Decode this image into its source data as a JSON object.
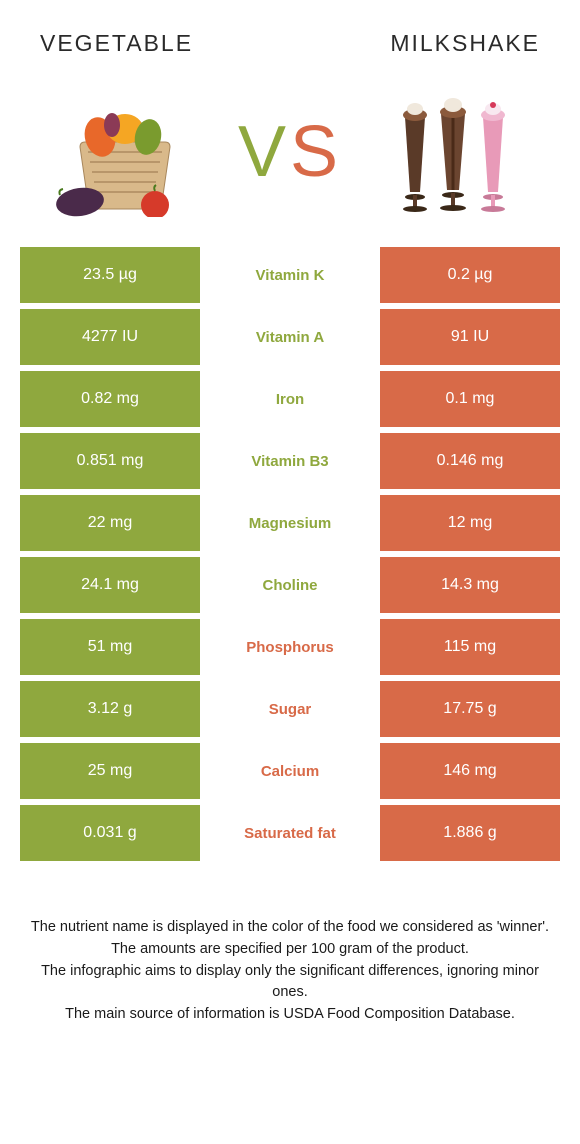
{
  "colors": {
    "left": "#8fa83e",
    "right": "#d86a48",
    "mid_left_text": "#8fa83e",
    "mid_right_text": "#d86a48",
    "header_text": "#2a2a2a"
  },
  "header": {
    "left_title": "Vegetable",
    "right_title": "Milkshake"
  },
  "vs": {
    "v": "V",
    "s": "S"
  },
  "rows": [
    {
      "left": "23.5 µg",
      "mid": "Vitamin K",
      "right": "0.2 µg",
      "winner": "left"
    },
    {
      "left": "4277 IU",
      "mid": "Vitamin A",
      "right": "91 IU",
      "winner": "left"
    },
    {
      "left": "0.82 mg",
      "mid": "Iron",
      "right": "0.1 mg",
      "winner": "left"
    },
    {
      "left": "0.851 mg",
      "mid": "Vitamin B3",
      "right": "0.146 mg",
      "winner": "left"
    },
    {
      "left": "22 mg",
      "mid": "Magnesium",
      "right": "12 mg",
      "winner": "left"
    },
    {
      "left": "24.1 mg",
      "mid": "Choline",
      "right": "14.3 mg",
      "winner": "left"
    },
    {
      "left": "51 mg",
      "mid": "Phosphorus",
      "right": "115 mg",
      "winner": "right"
    },
    {
      "left": "3.12 g",
      "mid": "Sugar",
      "right": "17.75 g",
      "winner": "right"
    },
    {
      "left": "25 mg",
      "mid": "Calcium",
      "right": "146 mg",
      "winner": "right"
    },
    {
      "left": "0.031 g",
      "mid": "Saturated fat",
      "right": "1.886 g",
      "winner": "right"
    }
  ],
  "footer": {
    "line1": "The nutrient name is displayed in the color of the food we considered as 'winner'.",
    "line2": "The amounts are specified per 100 gram of the product.",
    "line3": "The infographic aims to display only the significant differences, ignoring minor ones.",
    "line4": "The main source of information is USDA Food Composition Database."
  }
}
